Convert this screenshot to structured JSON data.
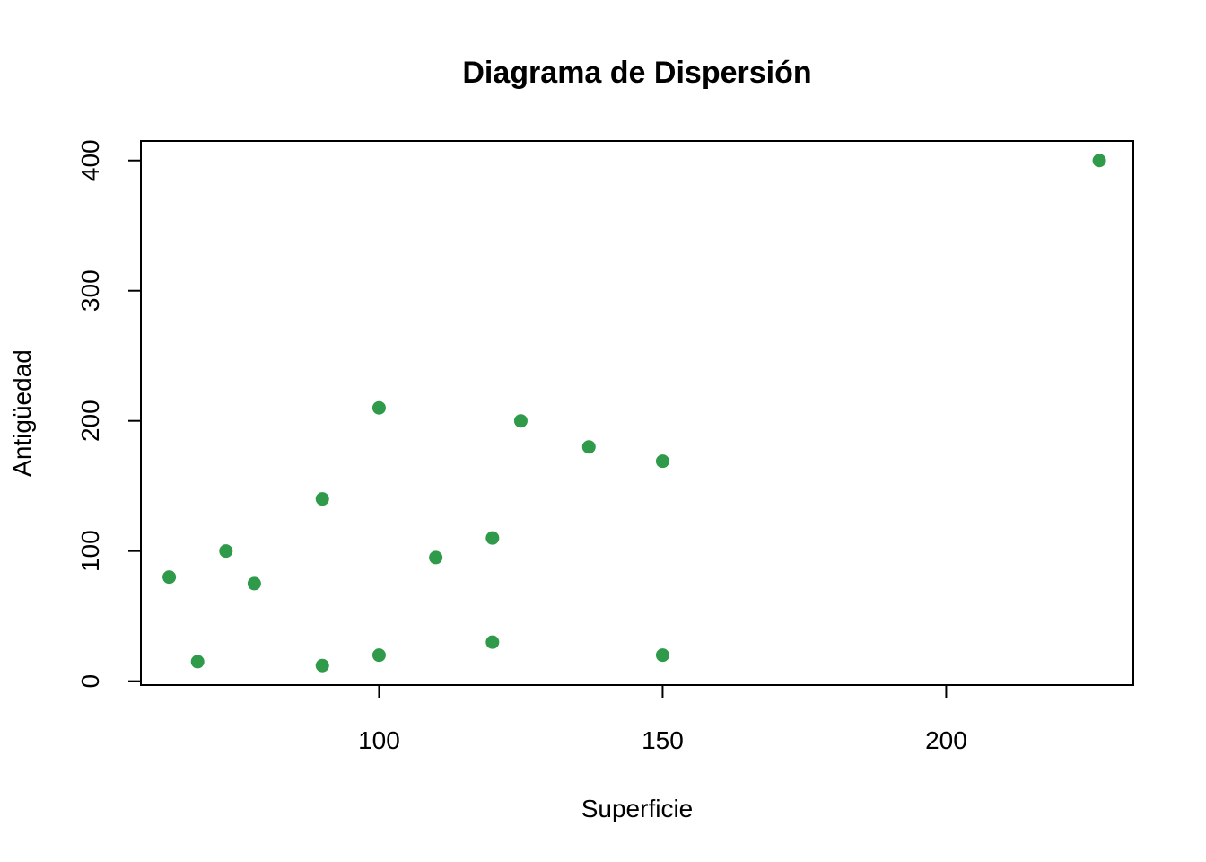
{
  "chart_data": {
    "type": "scatter",
    "title": "Diagrama de Dispersión",
    "xlabel": "Superficie",
    "ylabel": "Antigüedad",
    "xlim": [
      58,
      233
    ],
    "ylim": [
      -3,
      415
    ],
    "xticks": [
      100,
      150,
      200
    ],
    "yticks": [
      0,
      100,
      200,
      300,
      400
    ],
    "point_color": "#2E9A4A",
    "grid": false,
    "points": [
      {
        "x": 63,
        "y": 80
      },
      {
        "x": 68,
        "y": 15
      },
      {
        "x": 73,
        "y": 100
      },
      {
        "x": 78,
        "y": 75
      },
      {
        "x": 90,
        "y": 140
      },
      {
        "x": 90,
        "y": 12
      },
      {
        "x": 100,
        "y": 210
      },
      {
        "x": 100,
        "y": 20
      },
      {
        "x": 110,
        "y": 95
      },
      {
        "x": 120,
        "y": 110
      },
      {
        "x": 120,
        "y": 30
      },
      {
        "x": 125,
        "y": 200
      },
      {
        "x": 137,
        "y": 180
      },
      {
        "x": 150,
        "y": 169
      },
      {
        "x": 150,
        "y": 20
      },
      {
        "x": 227,
        "y": 400
      }
    ]
  }
}
